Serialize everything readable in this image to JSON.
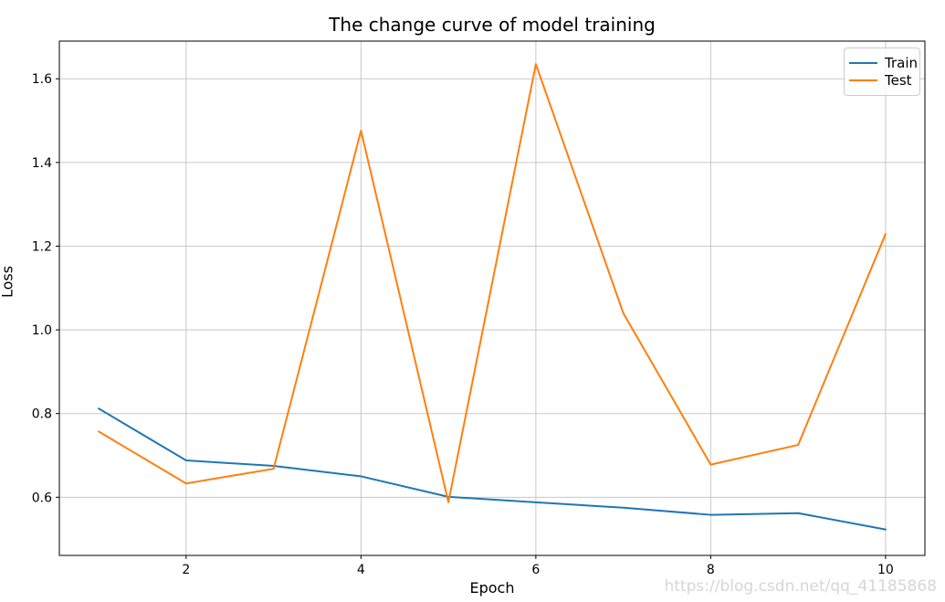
{
  "title": "The change curve of model training",
  "watermark": "https://blog.csdn.net/qq_41185868",
  "colors": {
    "train": "#1f77b4",
    "test": "#ff7f0e",
    "grid": "#c8c8c8",
    "spine": "#000000",
    "watermark": "#d6d6d6",
    "legend_border": "#cccccc"
  },
  "legend": {
    "position": "upper right",
    "entries": [
      {
        "label": "Train",
        "color": "#1f77b4"
      },
      {
        "label": "Test",
        "color": "#ff7f0e"
      }
    ]
  },
  "chart_data": {
    "type": "line",
    "title": "The change curve of model training",
    "xlabel": "Epoch",
    "ylabel": "Loss",
    "x": [
      1,
      2,
      3,
      4,
      5,
      6,
      7,
      8,
      9,
      10
    ],
    "series": [
      {
        "name": "Train",
        "color": "#1f77b4",
        "values": [
          0.812,
          0.688,
          0.675,
          0.65,
          0.601,
          0.588,
          0.575,
          0.558,
          0.562,
          0.523
        ]
      },
      {
        "name": "Test",
        "color": "#ff7f0e",
        "values": [
          0.757,
          0.633,
          0.668,
          1.476,
          0.588,
          1.635,
          1.04,
          0.678,
          0.725,
          1.229
        ]
      }
    ],
    "xlim": [
      0.55,
      10.45
    ],
    "ylim": [
      0.461,
      1.69
    ],
    "xticks": [
      2,
      4,
      6,
      8,
      10
    ],
    "yticks": [
      0.6,
      0.8,
      1.0,
      1.2,
      1.4,
      1.6
    ],
    "grid": true,
    "legend_position": "upper right"
  }
}
